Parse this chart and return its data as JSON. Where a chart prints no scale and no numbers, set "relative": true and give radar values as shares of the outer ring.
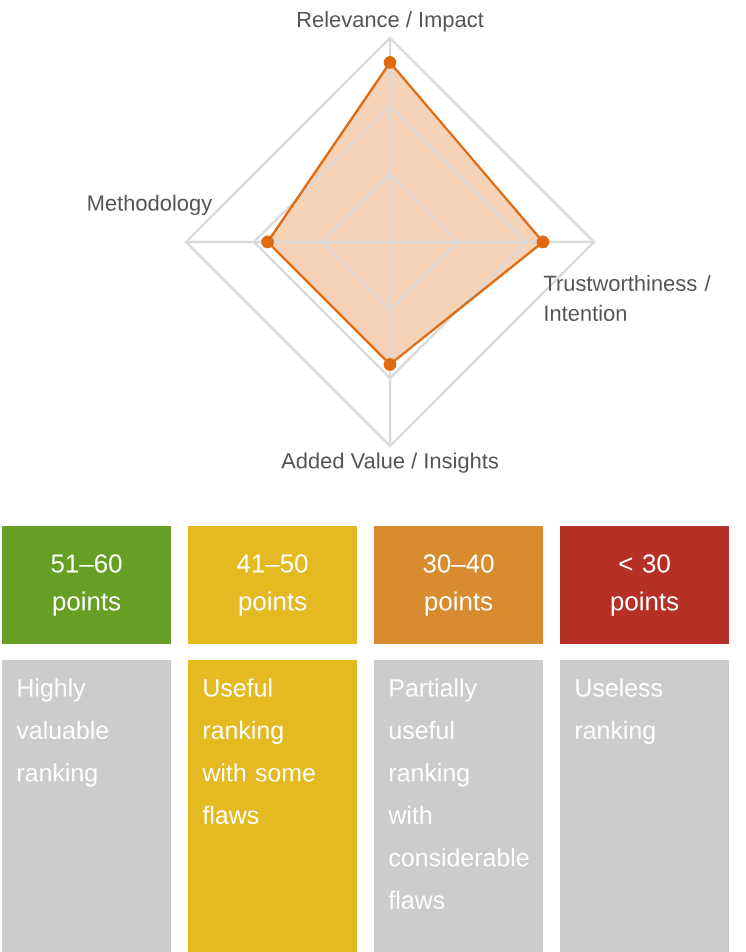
{
  "chart_data": [
    {
      "type": "radar",
      "categories": [
        "Relevance / Impact",
        "Trustworthiness / Intention",
        "Added Value / Insights",
        "Methodology"
      ],
      "relative": true,
      "grid": true,
      "marker": "circle",
      "series": [
        {
          "color": "#e06a10",
          "values": [
            0.88,
            0.75,
            0.6,
            0.6
          ]
        }
      ]
    },
    {
      "type": "other",
      "categories": [
        "51–60 points",
        "41–50 points",
        "30–40 points",
        "< 30 points"
      ],
      "colors": [
        "#65a024",
        "#e4b921",
        "#d98b2f",
        "#b53027",
        "#cccccc",
        "#e4b921",
        "#cccccc",
        "#cccccc"
      ],
      "annotations": [
        "Highly valuable ranking",
        "Useful ranking with some flaws",
        "Partially useful ranking with considerable flaws",
        "Useless ranking"
      ]
    }
  ]
}
